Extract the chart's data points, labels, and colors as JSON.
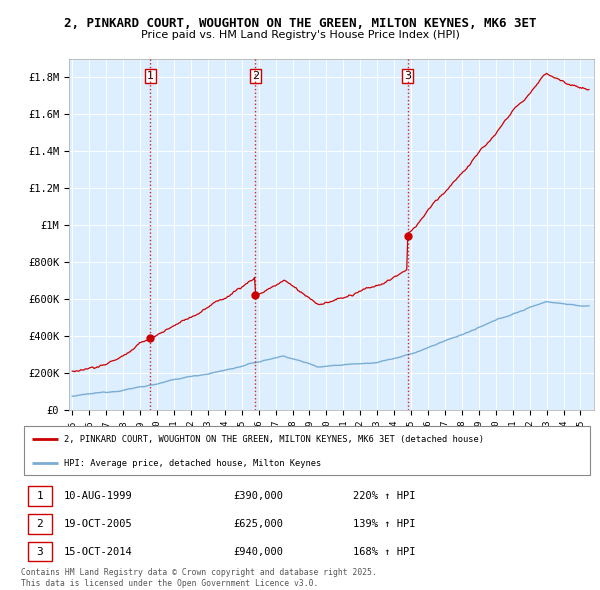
{
  "title1": "2, PINKARD COURT, WOUGHTON ON THE GREEN, MILTON KEYNES, MK6 3ET",
  "title2": "Price paid vs. HM Land Registry's House Price Index (HPI)",
  "ylim": [
    0,
    1900000
  ],
  "yticks": [
    0,
    200000,
    400000,
    600000,
    800000,
    1000000,
    1200000,
    1400000,
    1600000,
    1800000
  ],
  "ytick_labels": [
    "£0",
    "£200K",
    "£400K",
    "£600K",
    "£800K",
    "£1M",
    "£1.2M",
    "£1.4M",
    "£1.6M",
    "£1.8M"
  ],
  "xlim_start": 1994.8,
  "xlim_end": 2025.8,
  "sale_color": "#cc0000",
  "hpi_color": "#7aadd4",
  "bg_color": "#ddeeff",
  "vertical_line_color": "#cc0000",
  "sales": [
    {
      "date_num": 1999.61,
      "price": 390000,
      "label": "1"
    },
    {
      "date_num": 2005.8,
      "price": 625000,
      "label": "2"
    },
    {
      "date_num": 2014.79,
      "price": 940000,
      "label": "3"
    }
  ],
  "legend_label1": "2, PINKARD COURT, WOUGHTON ON THE GREEN, MILTON KEYNES, MK6 3ET (detached house)",
  "legend_label2": "HPI: Average price, detached house, Milton Keynes",
  "table_rows": [
    {
      "num": "1",
      "date": "10-AUG-1999",
      "price": "£390,000",
      "hpi": "220% ↑ HPI"
    },
    {
      "num": "2",
      "date": "19-OCT-2005",
      "price": "£625,000",
      "hpi": "139% ↑ HPI"
    },
    {
      "num": "3",
      "date": "15-OCT-2014",
      "price": "£940,000",
      "hpi": "168% ↑ HPI"
    }
  ],
  "footnote": "Contains HM Land Registry data © Crown copyright and database right 2025.\nThis data is licensed under the Open Government Licence v3.0."
}
